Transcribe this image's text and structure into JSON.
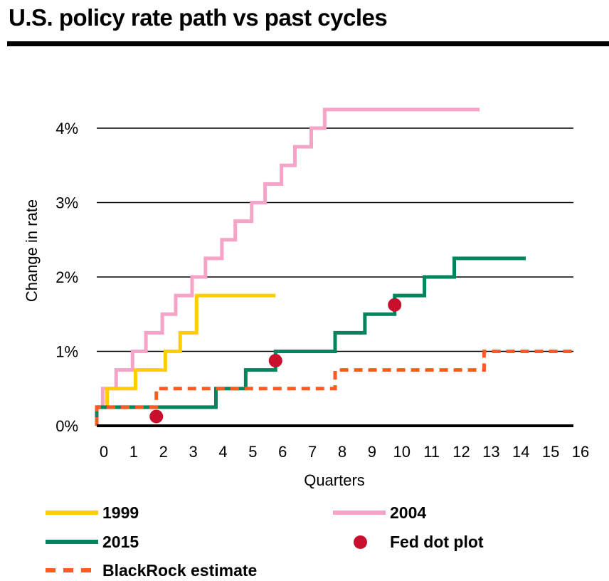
{
  "chart_data": {
    "type": "line",
    "title": "U.S. policy rate path vs past cycles",
    "xlabel": "Quarters",
    "ylabel": "Change in rate",
    "xlim": [
      0,
      16
    ],
    "ylim": [
      0,
      4
    ],
    "x_ticks": [
      "0",
      "1",
      "2",
      "3",
      "4",
      "5",
      "6",
      "7",
      "8",
      "9",
      "10",
      "11",
      "12",
      "13",
      "14",
      "15",
      "16"
    ],
    "y_ticks": [
      {
        "value": 0,
        "label": "0%"
      },
      {
        "value": 1,
        "label": "1%"
      },
      {
        "value": 2,
        "label": "2%"
      },
      {
        "value": 3,
        "label": "3%"
      },
      {
        "value": 4,
        "label": "4%"
      }
    ],
    "grid": true,
    "legend_position": "bottom",
    "series": [
      {
        "name": "1999",
        "style": "step",
        "color": "#FFCD00",
        "x": [
          0,
          0.35,
          1.3,
          2.3,
          2.8,
          3.35,
          6
        ],
        "y": [
          0.25,
          0.5,
          0.75,
          1.0,
          1.25,
          1.75,
          1.75
        ]
      },
      {
        "name": "2004",
        "style": "step",
        "color": "#F5A3C7",
        "x": [
          0,
          0.2,
          0.65,
          1.2,
          1.65,
          2.2,
          2.65,
          3.2,
          3.65,
          4.2,
          4.65,
          5.2,
          5.65,
          6.2,
          6.65,
          7.2,
          7.65,
          12.85
        ],
        "y": [
          0.25,
          0.5,
          0.75,
          1.0,
          1.25,
          1.5,
          1.75,
          2.0,
          2.25,
          2.5,
          2.75,
          3.0,
          3.25,
          3.5,
          3.75,
          4.0,
          4.25,
          4.25
        ]
      },
      {
        "name": "2015",
        "style": "step",
        "color": "#00855F",
        "x": [
          0,
          4,
          5,
          6,
          8,
          9,
          10,
          11,
          12,
          14.4
        ],
        "y": [
          0.25,
          0.5,
          0.75,
          1.0,
          1.25,
          1.5,
          1.75,
          2.0,
          2.25,
          2.25
        ]
      },
      {
        "name": "BlackRock estimate",
        "style": "dashed-step",
        "color": "#FF5A1F",
        "x": [
          0,
          2,
          8,
          13,
          16
        ],
        "y": [
          0.25,
          0.5,
          0.75,
          1.0,
          1.0
        ]
      },
      {
        "name": "Fed dot plot",
        "style": "points",
        "color": "#C8102E",
        "x": [
          2,
          6,
          10
        ],
        "y": [
          0.125,
          0.875,
          1.625
        ]
      }
    ]
  },
  "legend": {
    "items": [
      {
        "label": "1999",
        "color": "#FFCD00",
        "kind": "line"
      },
      {
        "label": "2004",
        "color": "#F5A3C7",
        "kind": "line"
      },
      {
        "label": "2015",
        "color": "#00855F",
        "kind": "line"
      },
      {
        "label": "Fed dot plot",
        "color": "#C8102E",
        "kind": "dot"
      },
      {
        "label": "BlackRock estimate",
        "color": "#FF5A1F",
        "kind": "dashed"
      }
    ]
  }
}
